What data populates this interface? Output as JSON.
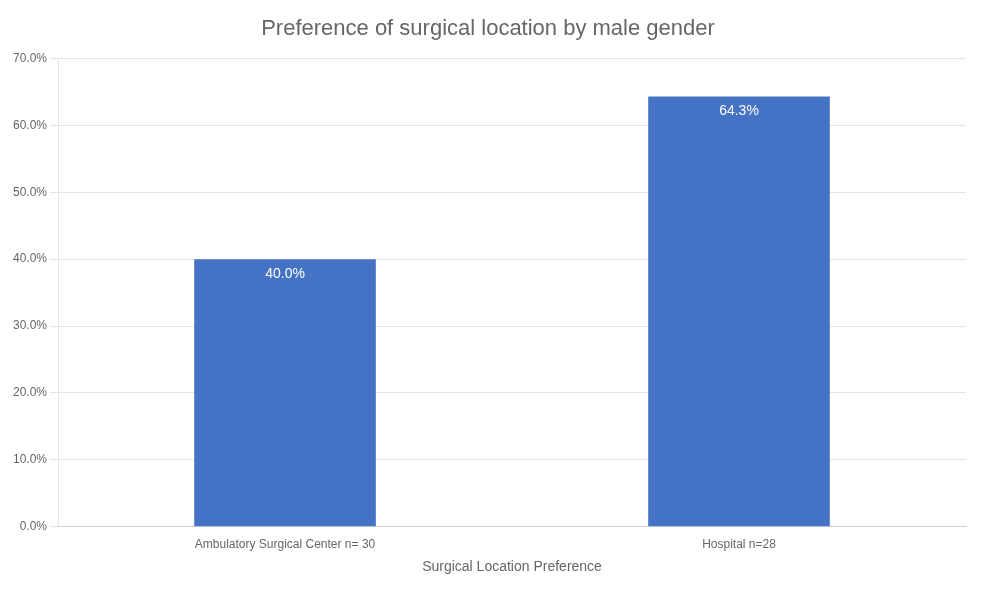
{
  "chart_data": {
    "type": "bar",
    "title": "Preference of surgical location by male gender",
    "categories": [
      "Ambulatory Surgical Center n= 30",
      "Hospital n=28"
    ],
    "values": [
      40.0,
      64.3
    ],
    "value_labels": [
      "40.0%",
      "64.3%"
    ],
    "data_labels": true,
    "color": "#4472C4",
    "xlabel": "Surgical Location Preference",
    "ylim": [
      0,
      70
    ],
    "yticks": [
      {
        "value": 0,
        "label": "0.0%"
      },
      {
        "value": 10,
        "label": "10.0%"
      },
      {
        "value": 20,
        "label": "20.0%"
      },
      {
        "value": 30,
        "label": "30.0%"
      },
      {
        "value": 40,
        "label": "40.0%"
      },
      {
        "value": 50,
        "label": "50.0%"
      },
      {
        "value": 60,
        "label": "60.0%"
      },
      {
        "value": 70,
        "label": "70.0%"
      }
    ],
    "grid": true
  }
}
